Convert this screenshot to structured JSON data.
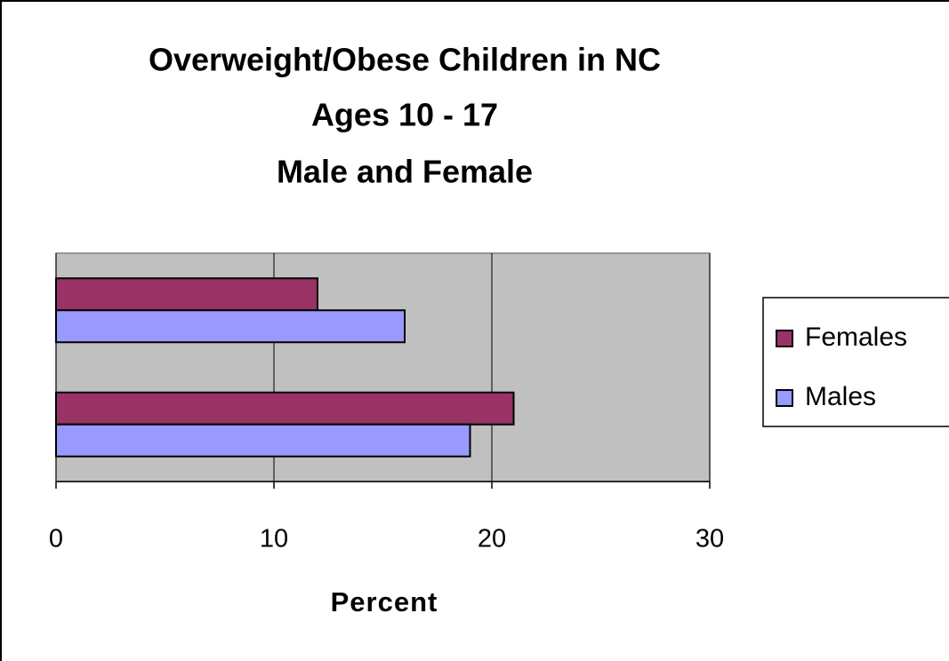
{
  "chart_data": {
    "type": "hbar",
    "title": [
      "Overweight/Obese Children in NC",
      "Ages 10 - 17",
      "Male and Female"
    ],
    "x_label": "Percent",
    "categories": [
      null,
      null
    ],
    "series": [
      {
        "name": "Females",
        "color": "#993366",
        "values": [
          12,
          21
        ]
      },
      {
        "name": "Males",
        "color": "#9999ff",
        "values": [
          16,
          19
        ]
      }
    ],
    "xlim": [
      0,
      30
    ],
    "xticks": [
      0,
      10,
      20,
      30
    ],
    "grid": true,
    "legend": "right"
  }
}
